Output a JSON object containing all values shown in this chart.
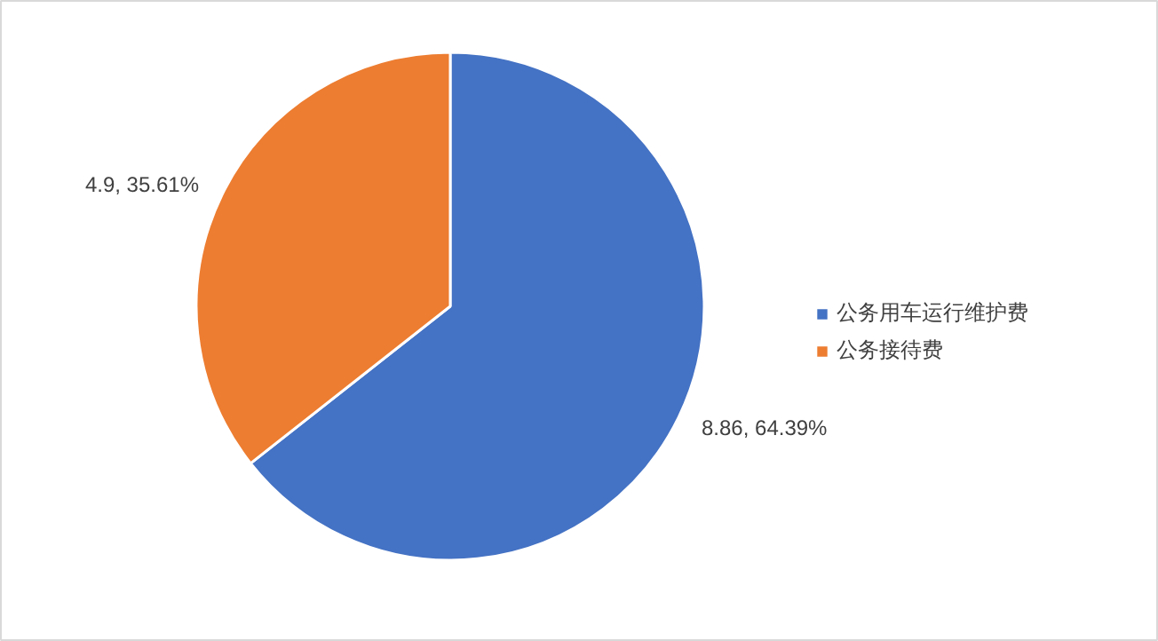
{
  "chart_data": {
    "type": "pie",
    "categories": [
      "公务用车运行维护费",
      "公务接待费"
    ],
    "values": [
      8.86,
      4.9
    ],
    "colors": [
      "#4472c4",
      "#ed7d31"
    ],
    "value_labels": [
      "8.86, 64.39%",
      "4.9, 35.61%"
    ],
    "legend": "right"
  }
}
